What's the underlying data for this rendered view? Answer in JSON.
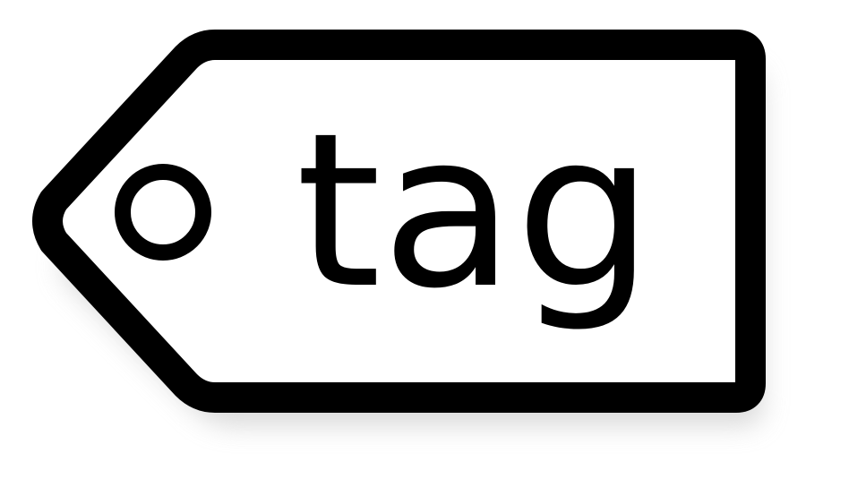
{
  "tag": {
    "label": "tag",
    "stroke_color": "#000000",
    "fill_color": "#ffffff",
    "shadow_color": "#d9d9d9",
    "icon": "tag-icon"
  }
}
